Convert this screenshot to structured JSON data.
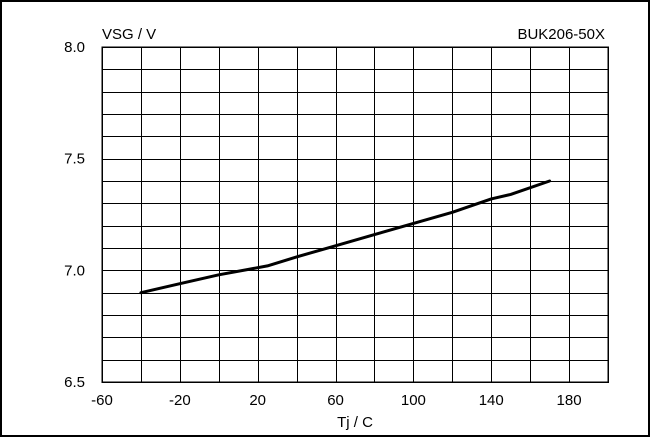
{
  "chart_data": {
    "type": "line",
    "top_left_label": "VSG / V",
    "top_right_label": "BUK206-50X",
    "xlabel": "Tj / C",
    "xlim": [
      -60,
      200
    ],
    "ylim": [
      6.5,
      8.0
    ],
    "x_ticks": [
      -60,
      -20,
      20,
      60,
      100,
      140,
      180
    ],
    "x_tick_labels": [
      "-60",
      "-20",
      "20",
      "60",
      "100",
      "140",
      "180"
    ],
    "y_ticks": [
      6.5,
      7.0,
      7.5,
      8.0
    ],
    "y_tick_labels": [
      "6.5",
      "7.0",
      "7.5",
      "8.0"
    ],
    "x_grid_step": 20,
    "y_grid_step": 0.1,
    "grid": true,
    "series": [
      {
        "x": [
          -40,
          -20,
          0,
          25,
          40,
          60,
          80,
          100,
          120,
          140,
          150,
          170
        ],
        "y": [
          6.9,
          6.94,
          6.98,
          7.02,
          7.06,
          7.11,
          7.16,
          7.21,
          7.26,
          7.32,
          7.34,
          7.4
        ]
      }
    ]
  }
}
